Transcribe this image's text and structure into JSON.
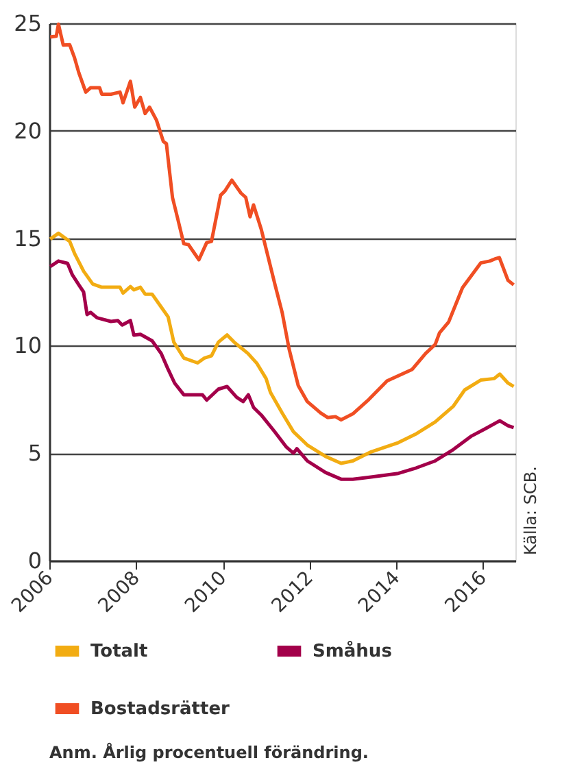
{
  "chart_data": {
    "type": "line",
    "xlim": [
      2006,
      2016.75
    ],
    "xticks": [
      2006,
      2008,
      2010,
      2012,
      2014,
      2016
    ],
    "ylim": [
      0,
      25
    ],
    "yticks": [
      0,
      5,
      10,
      15,
      20,
      25
    ],
    "grid": "y",
    "legend": "bottom",
    "line_style": "solid",
    "marker": "none",
    "annotations": [
      "Källa: SCB.",
      "Anm. Årlig procentuell förändring."
    ],
    "series": [
      {
        "name": "Totalt",
        "color": "#f2ac12",
        "x": [
          2006.02,
          2006.21,
          2006.47,
          2006.58,
          2006.79,
          2007.0,
          2007.21,
          2007.42,
          2007.63,
          2007.7,
          2007.87,
          2007.95,
          2008.1,
          2008.21,
          2008.37,
          2008.58,
          2008.74,
          2008.87,
          2009.1,
          2009.42,
          2009.58,
          2009.74,
          2009.9,
          2010.1,
          2010.26,
          2010.58,
          2010.79,
          2011.0,
          2011.1,
          2011.37,
          2011.63,
          2011.95,
          2012.37,
          2012.73,
          2013.0,
          2013.42,
          2014.05,
          2014.47,
          2014.9,
          2015.32,
          2015.58,
          2015.95,
          2016.26,
          2016.39,
          2016.58,
          2016.71
        ],
        "values": [
          14.96,
          15.23,
          14.85,
          14.3,
          13.47,
          12.87,
          12.72,
          12.72,
          12.72,
          12.45,
          12.75,
          12.6,
          12.72,
          12.4,
          12.4,
          11.8,
          11.34,
          10.17,
          9.43,
          9.2,
          9.43,
          9.53,
          10.17,
          10.5,
          10.17,
          9.64,
          9.17,
          8.47,
          7.83,
          6.87,
          6.0,
          5.38,
          4.85,
          4.53,
          4.64,
          5.06,
          5.49,
          5.91,
          6.45,
          7.19,
          7.94,
          8.4,
          8.47,
          8.68,
          8.26,
          8.1
        ]
      },
      {
        "name": "Småhus",
        "color": "#a3004a",
        "x": [
          2006.02,
          2006.21,
          2006.42,
          2006.53,
          2006.68,
          2006.79,
          2006.87,
          2006.95,
          2007.1,
          2007.42,
          2007.58,
          2007.68,
          2007.87,
          2007.95,
          2008.1,
          2008.37,
          2008.58,
          2008.74,
          2008.89,
          2009.1,
          2009.53,
          2009.63,
          2009.9,
          2010.1,
          2010.32,
          2010.47,
          2010.59,
          2010.71,
          2010.89,
          2011.19,
          2011.47,
          2011.63,
          2011.71,
          2011.95,
          2012.37,
          2012.73,
          2013.0,
          2013.42,
          2014.05,
          2014.47,
          2014.9,
          2015.32,
          2015.74,
          2016.05,
          2016.39,
          2016.58,
          2016.71
        ],
        "values": [
          13.68,
          13.94,
          13.83,
          13.3,
          12.83,
          12.5,
          11.45,
          11.55,
          11.3,
          11.13,
          11.17,
          10.96,
          11.17,
          10.49,
          10.53,
          10.23,
          9.64,
          8.9,
          8.26,
          7.72,
          7.72,
          7.47,
          7.98,
          8.1,
          7.6,
          7.4,
          7.72,
          7.13,
          6.77,
          6.02,
          5.28,
          5.0,
          5.21,
          4.64,
          4.1,
          3.79,
          3.79,
          3.89,
          4.06,
          4.32,
          4.64,
          5.17,
          5.8,
          6.13,
          6.51,
          6.28,
          6.19
        ]
      },
      {
        "name": "Bostadsrätter",
        "color": "#f04e23",
        "x": [
          2006.02,
          2006.16,
          2006.21,
          2006.32,
          2006.47,
          2006.58,
          2006.68,
          2006.84,
          2006.95,
          2007.16,
          2007.21,
          2007.42,
          2007.63,
          2007.7,
          2007.87,
          2007.97,
          2008.1,
          2008.21,
          2008.31,
          2008.47,
          2008.63,
          2008.7,
          2008.84,
          2008.95,
          2009.1,
          2009.21,
          2009.45,
          2009.63,
          2009.74,
          2009.95,
          2010.05,
          2010.21,
          2010.42,
          2010.53,
          2010.63,
          2010.71,
          2010.89,
          2011.05,
          2011.21,
          2011.37,
          2011.53,
          2011.74,
          2011.95,
          2012.26,
          2012.42,
          2012.6,
          2012.73,
          2013.0,
          2013.37,
          2013.79,
          2014.05,
          2014.37,
          2014.68,
          2014.9,
          2015.0,
          2015.21,
          2015.53,
          2015.95,
          2016.16,
          2016.28,
          2016.38,
          2016.58,
          2016.71
        ],
        "values": [
          24.36,
          24.4,
          24.96,
          23.99,
          24.0,
          23.4,
          22.7,
          21.8,
          22.0,
          22.0,
          21.7,
          21.7,
          21.8,
          21.3,
          22.3,
          21.1,
          21.55,
          20.8,
          21.1,
          20.5,
          19.5,
          19.4,
          16.9,
          16.0,
          14.75,
          14.7,
          14.0,
          14.8,
          14.85,
          17.0,
          17.2,
          17.7,
          17.1,
          16.9,
          16.0,
          16.55,
          15.4,
          14.1,
          12.8,
          11.55,
          9.85,
          8.15,
          7.4,
          6.87,
          6.66,
          6.7,
          6.55,
          6.83,
          7.5,
          8.36,
          8.6,
          8.9,
          9.64,
          10.06,
          10.6,
          11.1,
          12.7,
          13.85,
          13.94,
          14.04,
          14.1,
          13.04,
          12.83
        ]
      }
    ]
  }
}
